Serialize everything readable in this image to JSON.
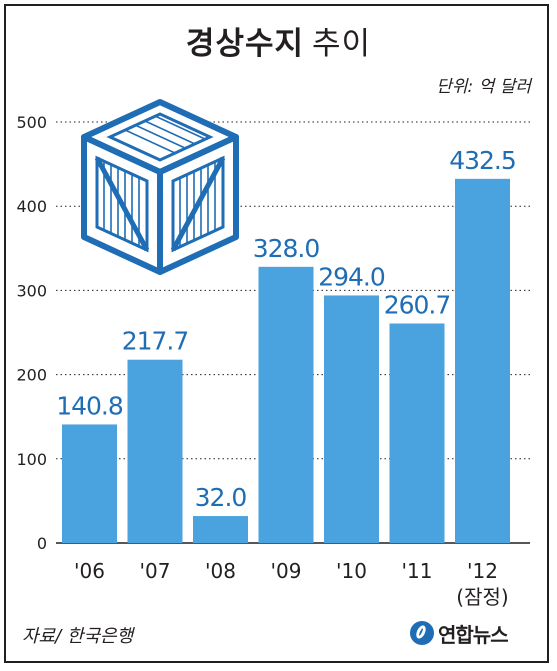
{
  "header": {
    "title_bold": "경상수지",
    "title_light": "추이",
    "unit": "단위: 억 달러"
  },
  "footer": {
    "source": "자료/ 한국은행",
    "logo_text": "연합뉴스"
  },
  "colors": {
    "bar": "#4aa3df",
    "value_label": "#1f6db4",
    "gridline": "#231f20"
  },
  "icons": {
    "decoration": "wooden-crate-icon",
    "logo": "yonhap-logo-icon"
  },
  "chart_data": {
    "type": "bar",
    "categories": [
      "'06",
      "'07",
      "'08",
      "'09",
      "'10",
      "'11",
      "'12"
    ],
    "category_sublabels": [
      "",
      "",
      "",
      "",
      "",
      "",
      "(잠정)"
    ],
    "values": [
      140.8,
      217.7,
      32.0,
      328.0,
      294.0,
      260.7,
      432.5
    ],
    "value_labels": [
      "140.8",
      "217.7",
      "32.0",
      "328.0",
      "294.0",
      "260.7",
      "432.5"
    ],
    "title": "경상수지 추이",
    "ylim": [
      0,
      500
    ],
    "yticks": [
      0,
      100,
      200,
      300,
      400,
      500
    ],
    "grid": "dotted"
  }
}
